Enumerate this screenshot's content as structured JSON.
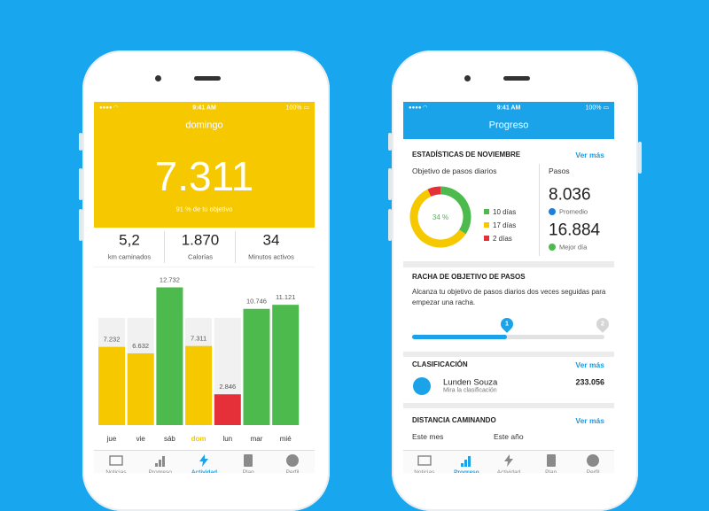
{
  "status_bar": {
    "time": "9:41 AM",
    "battery": "100%"
  },
  "activity_screen": {
    "day": "domingo",
    "steps": "7.311",
    "goal_text": "91 % de tu objetivo",
    "stats": [
      {
        "value": "5,2",
        "label": "km caminados"
      },
      {
        "value": "1.870",
        "label": "Calorías"
      },
      {
        "value": "34",
        "label": "Minutos activos"
      }
    ],
    "active_tab": 2
  },
  "chart_data": {
    "type": "bar",
    "categories": [
      "jue",
      "vie",
      "sáb",
      "dom",
      "lun",
      "mar",
      "mié"
    ],
    "values": [
      7232,
      6632,
      12732,
      7311,
      2846,
      10746,
      11121
    ],
    "value_labels": [
      "7.232",
      "6.632",
      "12.732",
      "7.311",
      "2.846",
      "10.746",
      "11.121"
    ],
    "colors": [
      "#f5c800",
      "#f5c800",
      "#4cba4c",
      "#f5c800",
      "#e5303a",
      "#4cba4c",
      "#4cba4c"
    ],
    "selected": 3,
    "ylim": [
      0,
      14000
    ]
  },
  "progress_screen": {
    "title": "Progreso",
    "active_tab": 1,
    "stats": {
      "heading": "ESTADÍSTICAS DE NOVIEMBRE",
      "more": "Ver más",
      "donut_title": "Objetivo de pasos diarios",
      "center_label": "34 %",
      "segments": [
        {
          "label": "10 días",
          "value": 10,
          "color": "#4cba4c"
        },
        {
          "label": "17 días",
          "value": 17,
          "color": "#f5c800"
        },
        {
          "label": "2 días",
          "value": 2,
          "color": "#e5303a"
        }
      ],
      "steps_title": "Pasos",
      "average": "8.036",
      "average_label": "Promedio",
      "best": "16.884",
      "best_label": "Mejor día"
    },
    "streak": {
      "heading": "RACHA DE OBJETIVO DE PASOS",
      "text": "Alcanza tu objetivo de pasos diarios dos veces seguidas para empezar una racha.",
      "markers": [
        "1",
        "2"
      ]
    },
    "ranking": {
      "heading": "CLASIFICACIÓN",
      "more": "Ver más",
      "name": "Lunden Souza",
      "subtitle": "Mira la clasificación",
      "score": "233.056"
    },
    "distance": {
      "heading": "DISTANCIA CAMINANDO",
      "more": "Ver más",
      "month": "Este mes",
      "year": "Este año"
    }
  },
  "tabs": [
    "Noticias",
    "Progreso",
    "Actividad",
    "Plan",
    "Perfil"
  ]
}
